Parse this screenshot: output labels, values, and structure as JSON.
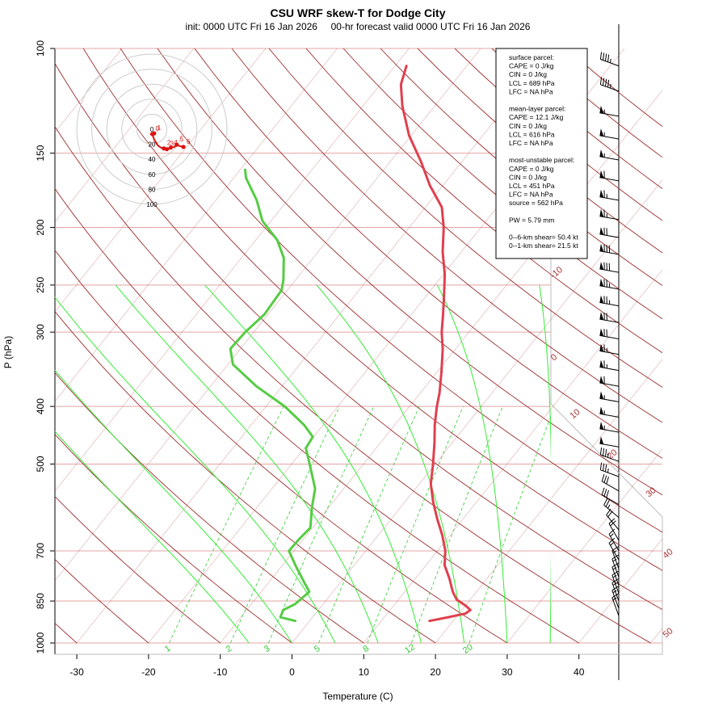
{
  "chart_data": {
    "type": "skew-t",
    "title": "CSU WRF skew-T for Dodge City",
    "subtitle": "init: 0000 UTC Fri 16 Jan 2026     00-hr forecast valid 0000 UTC Fri 16 Jan 2026",
    "xlabel": "Temperature (C)",
    "ylabel": "P (hPa)",
    "pressure_ticks": [
      100,
      150,
      200,
      250,
      300,
      400,
      500,
      700,
      850,
      1000
    ],
    "temperature_ticks": [
      -30,
      -20,
      -10,
      0,
      10,
      20,
      30,
      40
    ],
    "xlim": [
      -33,
      45
    ],
    "plim": [
      100,
      1000
    ],
    "isotherm_labels": [
      "-10",
      "0",
      "10",
      "20",
      "30",
      "40",
      "50"
    ],
    "mixing_ratio_labels": [
      "1",
      "2",
      "3",
      "5",
      "8",
      "12",
      "20"
    ],
    "temperature_profile": [
      {
        "p": 918,
        "t": 16.7
      },
      {
        "p": 905,
        "t": 18.9
      },
      {
        "p": 892,
        "t": 20.9
      },
      {
        "p": 880,
        "t": 21.2
      },
      {
        "p": 865,
        "t": 20.0
      },
      {
        "p": 845,
        "t": 18.1
      },
      {
        "p": 820,
        "t": 16.7
      },
      {
        "p": 780,
        "t": 14.8
      },
      {
        "p": 740,
        "t": 12.6
      },
      {
        "p": 700,
        "t": 11.1
      },
      {
        "p": 660,
        "t": 9.0
      },
      {
        "p": 620,
        "t": 6.5
      },
      {
        "p": 580,
        "t": 4.0
      },
      {
        "p": 540,
        "t": 1.6
      },
      {
        "p": 500,
        "t": -0.3
      },
      {
        "p": 460,
        "t": -2.5
      },
      {
        "p": 430,
        "t": -4.4
      },
      {
        "p": 400,
        "t": -6.2
      },
      {
        "p": 380,
        "t": -7.3
      },
      {
        "p": 350,
        "t": -9.4
      },
      {
        "p": 320,
        "t": -11.8
      },
      {
        "p": 300,
        "t": -13.8
      },
      {
        "p": 280,
        "t": -15.6
      },
      {
        "p": 260,
        "t": -17.6
      },
      {
        "p": 240,
        "t": -19.8
      },
      {
        "p": 220,
        "t": -22.6
      },
      {
        "p": 200,
        "t": -25.2
      },
      {
        "p": 185,
        "t": -27.7
      },
      {
        "p": 170,
        "t": -31.8
      },
      {
        "p": 155,
        "t": -35.7
      },
      {
        "p": 140,
        "t": -40.3
      },
      {
        "p": 125,
        "t": -44.5
      },
      {
        "p": 115,
        "t": -47.1
      },
      {
        "p": 107,
        "t": -48.4
      }
    ],
    "dewpoint_profile": [
      {
        "p": 918,
        "t": -2.0
      },
      {
        "p": 905,
        "t": -4.5
      },
      {
        "p": 880,
        "t": -4.9
      },
      {
        "p": 860,
        "t": -3.9
      },
      {
        "p": 820,
        "t": -3.3
      },
      {
        "p": 790,
        "t": -5.1
      },
      {
        "p": 740,
        "t": -8.2
      },
      {
        "p": 700,
        "t": -10.7
      },
      {
        "p": 670,
        "t": -10.6
      },
      {
        "p": 640,
        "t": -10.3
      },
      {
        "p": 590,
        "t": -12.4
      },
      {
        "p": 550,
        "t": -14.0
      },
      {
        "p": 500,
        "t": -17.5
      },
      {
        "p": 470,
        "t": -19.8
      },
      {
        "p": 450,
        "t": -20.1
      },
      {
        "p": 430,
        "t": -22.6
      },
      {
        "p": 400,
        "t": -27.4
      },
      {
        "p": 370,
        "t": -33.6
      },
      {
        "p": 340,
        "t": -39.3
      },
      {
        "p": 320,
        "t": -41.4
      },
      {
        "p": 300,
        "t": -41.2
      },
      {
        "p": 280,
        "t": -40.5
      },
      {
        "p": 255,
        "t": -40.8
      },
      {
        "p": 245,
        "t": -41.7
      },
      {
        "p": 225,
        "t": -44.1
      },
      {
        "p": 210,
        "t": -47.0
      },
      {
        "p": 195,
        "t": -51.2
      },
      {
        "p": 180,
        "t": -54.3
      },
      {
        "p": 165,
        "t": -58.3
      },
      {
        "p": 160,
        "t": -59.3
      }
    ],
    "wind_barbs": [
      {
        "p": 107,
        "dir": 290,
        "spd": 45
      },
      {
        "p": 118,
        "dir": 290,
        "spd": 45
      },
      {
        "p": 130,
        "dir": 280,
        "spd": 55
      },
      {
        "p": 142,
        "dir": 280,
        "spd": 55
      },
      {
        "p": 154,
        "dir": 280,
        "spd": 55
      },
      {
        "p": 167,
        "dir": 280,
        "spd": 60
      },
      {
        "p": 180,
        "dir": 280,
        "spd": 65
      },
      {
        "p": 194,
        "dir": 280,
        "spd": 65
      },
      {
        "p": 208,
        "dir": 280,
        "spd": 70
      },
      {
        "p": 222,
        "dir": 280,
        "spd": 80
      },
      {
        "p": 238,
        "dir": 280,
        "spd": 80
      },
      {
        "p": 254,
        "dir": 280,
        "spd": 75
      },
      {
        "p": 271,
        "dir": 280,
        "spd": 75
      },
      {
        "p": 289,
        "dir": 280,
        "spd": 70
      },
      {
        "p": 308,
        "dir": 280,
        "spd": 70
      },
      {
        "p": 327,
        "dir": 280,
        "spd": 65
      },
      {
        "p": 348,
        "dir": 280,
        "spd": 65
      },
      {
        "p": 370,
        "dir": 280,
        "spd": 60
      },
      {
        "p": 393,
        "dir": 280,
        "spd": 55
      },
      {
        "p": 417,
        "dir": 280,
        "spd": 55
      },
      {
        "p": 442,
        "dir": 280,
        "spd": 55
      },
      {
        "p": 468,
        "dir": 280,
        "spd": 50
      },
      {
        "p": 495,
        "dir": 290,
        "spd": 35
      },
      {
        "p": 525,
        "dir": 290,
        "spd": 35
      },
      {
        "p": 555,
        "dir": 300,
        "spd": 30
      },
      {
        "p": 585,
        "dir": 300,
        "spd": 30
      },
      {
        "p": 615,
        "dir": 310,
        "spd": 25
      },
      {
        "p": 645,
        "dir": 320,
        "spd": 20
      },
      {
        "p": 672,
        "dir": 330,
        "spd": 20
      },
      {
        "p": 700,
        "dir": 330,
        "spd": 15
      },
      {
        "p": 725,
        "dir": 330,
        "spd": 15
      },
      {
        "p": 750,
        "dir": 340,
        "spd": 15
      },
      {
        "p": 775,
        "dir": 340,
        "spd": 15
      },
      {
        "p": 800,
        "dir": 340,
        "spd": 15
      },
      {
        "p": 825,
        "dir": 340,
        "spd": 15
      },
      {
        "p": 850,
        "dir": 340,
        "spd": 15
      },
      {
        "p": 875,
        "dir": 340,
        "spd": 15
      },
      {
        "p": 900,
        "dir": 340,
        "spd": 15
      }
    ],
    "hodograph": {
      "ring_labels": [
        "0",
        "20",
        "40",
        "60",
        "80",
        "100"
      ],
      "points": [
        {
          "label": "0",
          "u": 0.5,
          "v": 1.2
        },
        {
          "label": "1",
          "u": 3,
          "v": 2
        },
        {
          "label": "2",
          "u": 16,
          "v": -18
        },
        {
          "label": "3",
          "u": 20,
          "v": -19
        },
        {
          "label": "4",
          "u": 25,
          "v": -17
        },
        {
          "label": "5",
          "u": 33,
          "v": -13
        },
        {
          "label": "6",
          "u": 42,
          "v": -16
        }
      ],
      "trace": [
        [
          0.5,
          1.2
        ],
        [
          3,
          -6
        ],
        [
          8,
          -14
        ],
        [
          12,
          -17
        ],
        [
          16,
          -18
        ],
        [
          20,
          -19
        ],
        [
          25,
          -17
        ],
        [
          30,
          -16
        ],
        [
          33,
          -13
        ],
        [
          37,
          -15
        ],
        [
          42,
          -16
        ]
      ]
    },
    "info_box": [
      "surface parcel:",
      "CAPE = 0 J/kg",
      "CIN = 0 J/kg",
      "LCL = 689 hPa",
      "LFC = NA hPa",
      "",
      "mean-layer parcel:",
      "CAPE = 12.1 J/kg",
      "CIN = 0 J/kg",
      "LCL = 616 hPa",
      "LFC = NA hPa",
      "",
      "most-unstable parcel:",
      "CAPE = 0 J/kg",
      "CIN = 0 J/kg",
      "LCL = 451 hPa",
      "LFC = NA hPa",
      "source = 562 hPa",
      "",
      "PW =  5.79 mm",
      "",
      "0--6-km shear= 50.4 kt",
      "0--1-km shear= 21.5 kt"
    ],
    "colors": {
      "temperature": "#e0404f",
      "dewpoint": "#55cc44",
      "isotherm": "#a83232",
      "dry_adiabat": "#9c2e2e",
      "moist_adiabat": "#33ee33",
      "mixing_ratio": "#33cc33",
      "pressure_line": "#e4a4a4",
      "barb": "#000000"
    }
  }
}
